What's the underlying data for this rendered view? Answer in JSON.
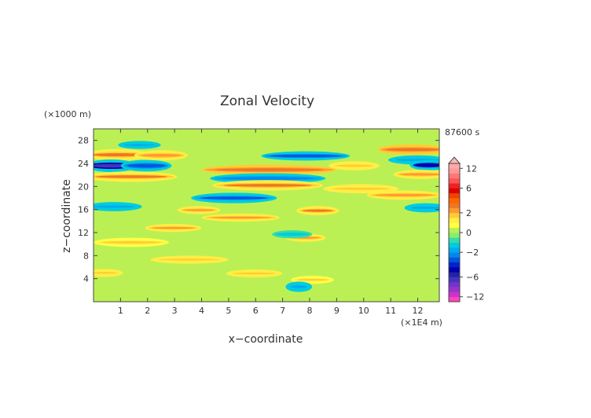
{
  "chart_data": {
    "type": "heatmap",
    "title": "Zonal Velocity",
    "xlabel": "x−coordinate",
    "ylabel": "z−coordinate",
    "x_unit": "(×1E4 m)",
    "y_unit": "(×1000 m)",
    "time_label": "87600 s",
    "xlim": [
      0,
      12.8
    ],
    "ylim": [
      0,
      30
    ],
    "x_ticks": [
      "1",
      "2",
      "3",
      "4",
      "5",
      "6",
      "7",
      "8",
      "9",
      "10",
      "11",
      "12"
    ],
    "y_ticks": [
      "4",
      "8",
      "12",
      "16",
      "20",
      "24",
      "28"
    ],
    "colorbar": {
      "ticks": [
        "12",
        "6",
        "2",
        "0",
        "−2",
        "−6",
        "−12"
      ],
      "levels": [
        -14,
        -12,
        -10,
        -8,
        -7,
        -6,
        -5,
        -4,
        -3,
        -2.5,
        -2,
        -1.5,
        -1,
        -0.5,
        0,
        0.5,
        1,
        1.5,
        2,
        2.5,
        3,
        4,
        5,
        6,
        7,
        8,
        10,
        12,
        14
      ],
      "colors": [
        "#ff44bb",
        "#cc33cc",
        "#9933cc",
        "#7733cc",
        "#4433bb",
        "#2222aa",
        "#0000aa",
        "#0022cc",
        "#0055dd",
        "#0088ee",
        "#00aaee",
        "#00ccdd",
        "#33ddaa",
        "#88ee66",
        "#bbf055",
        "#ffff44",
        "#ffee44",
        "#ffcc33",
        "#ff9933",
        "#ee7722",
        "#ff6600",
        "#ee4400",
        "#dd0000",
        "#ee2222",
        "#ff5555",
        "#ff7777",
        "#ff9999",
        "#ffaaaa"
      ]
    },
    "bands": [
      {
        "z": 25.5,
        "amp": 2.6,
        "xs": 0.0,
        "xe": 1.8,
        "w": 0.7
      },
      {
        "z": 25.4,
        "amp": 2.3,
        "xs": 1.8,
        "xe": 3.2,
        "w": 0.6
      },
      {
        "z": 23.6,
        "amp": -6.5,
        "xs": 0.0,
        "xe": 1.3,
        "w": 0.8
      },
      {
        "z": 23.6,
        "amp": -3.0,
        "xs": 1.3,
        "xe": 2.6,
        "w": 0.7
      },
      {
        "z": 21.7,
        "amp": 2.6,
        "xs": 0.0,
        "xe": 2.8,
        "w": 0.6
      },
      {
        "z": 22.9,
        "amp": 2.8,
        "xs": 4.3,
        "xe": 8.7,
        "w": 0.6
      },
      {
        "z": 23.6,
        "amp": 1.8,
        "xs": 9.0,
        "xe": 10.3,
        "w": 0.5
      },
      {
        "z": 25.3,
        "amp": -2.8,
        "xs": 6.5,
        "xe": 9.2,
        "w": 0.5
      },
      {
        "z": 27.2,
        "amp": -1.6,
        "xs": 1.2,
        "xe": 2.2,
        "w": 0.4
      },
      {
        "z": 26.4,
        "amp": 2.8,
        "xs": 10.8,
        "xe": 12.8,
        "w": 0.6
      },
      {
        "z": 24.6,
        "amp": -1.9,
        "xs": 11.2,
        "xe": 12.8,
        "w": 0.5
      },
      {
        "z": 23.7,
        "amp": -4.5,
        "xs": 12.0,
        "xe": 12.8,
        "w": 0.6
      },
      {
        "z": 21.4,
        "amp": -2.3,
        "xs": 4.6,
        "xe": 8.3,
        "w": 0.6
      },
      {
        "z": 20.2,
        "amp": 2.6,
        "xs": 4.7,
        "xe": 8.2,
        "w": 0.6
      },
      {
        "z": 22.1,
        "amp": 2.3,
        "xs": 11.4,
        "xe": 12.8,
        "w": 0.5
      },
      {
        "z": 19.6,
        "amp": 1.7,
        "xs": 8.8,
        "xe": 11.0,
        "w": 0.5
      },
      {
        "z": 18.0,
        "amp": -2.6,
        "xs": 3.9,
        "xe": 6.5,
        "w": 0.6
      },
      {
        "z": 18.5,
        "amp": 2.2,
        "xs": 10.4,
        "xe": 12.6,
        "w": 0.5
      },
      {
        "z": 16.5,
        "amp": -1.9,
        "xs": 0.0,
        "xe": 1.5,
        "w": 0.5
      },
      {
        "z": 15.9,
        "amp": 2.2,
        "xs": 3.4,
        "xe": 4.4,
        "w": 0.4
      },
      {
        "z": 15.8,
        "amp": 2.5,
        "xs": 7.8,
        "xe": 8.8,
        "w": 0.5
      },
      {
        "z": 14.6,
        "amp": 2.0,
        "xs": 4.3,
        "xe": 6.6,
        "w": 0.4
      },
      {
        "z": 16.3,
        "amp": -1.8,
        "xs": 11.8,
        "xe": 12.8,
        "w": 0.5
      },
      {
        "z": 12.8,
        "amp": 2.3,
        "xs": 2.2,
        "xe": 3.7,
        "w": 0.4
      },
      {
        "z": 11.1,
        "amp": 2.2,
        "xs": 7.4,
        "xe": 8.3,
        "w": 0.4
      },
      {
        "z": 11.7,
        "amp": -1.5,
        "xs": 6.9,
        "xe": 7.8,
        "w": 0.4
      },
      {
        "z": 10.3,
        "amp": 1.5,
        "xs": 0.3,
        "xe": 2.5,
        "w": 0.5
      },
      {
        "z": 7.3,
        "amp": 1.6,
        "xs": 2.4,
        "xe": 4.7,
        "w": 0.4
      },
      {
        "z": 5.0,
        "amp": 1.9,
        "xs": 0.0,
        "xe": 0.8,
        "w": 0.4
      },
      {
        "z": 4.9,
        "amp": 1.8,
        "xs": 5.2,
        "xe": 6.7,
        "w": 0.4
      },
      {
        "z": 3.8,
        "amp": 1.5,
        "xs": 7.6,
        "xe": 8.6,
        "w": 0.4
      },
      {
        "z": 2.6,
        "amp": -2.0,
        "xs": 7.4,
        "xe": 7.8,
        "w": 0.6
      }
    ]
  }
}
